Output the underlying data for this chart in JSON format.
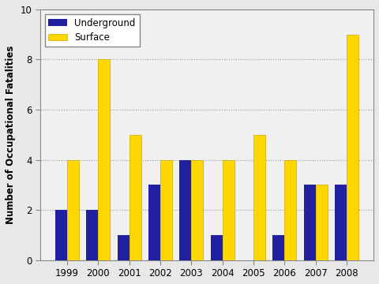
{
  "years": [
    1999,
    2000,
    2001,
    2002,
    2003,
    2004,
    2005,
    2006,
    2007,
    2008
  ],
  "underground": [
    2,
    2,
    1,
    3,
    4,
    1,
    0,
    1,
    3,
    3
  ],
  "surface": [
    4,
    8,
    5,
    4,
    4,
    4,
    5,
    4,
    3,
    9
  ],
  "underground_color": "#2020a0",
  "surface_color": "#ffd700",
  "surface_edge_color": "#ccaa00",
  "ylabel": "Number of Occupational Fatalities",
  "ylim": [
    0,
    10
  ],
  "yticks": [
    0,
    2,
    4,
    6,
    8,
    10
  ],
  "legend_underground": "Underground",
  "legend_surface": "Surface",
  "bar_width": 0.38,
  "grid_color": "#999999",
  "grid_linestyle": ":",
  "plot_bg_color": "#f0f0f0",
  "figure_bg_color": "#e8e8e8"
}
